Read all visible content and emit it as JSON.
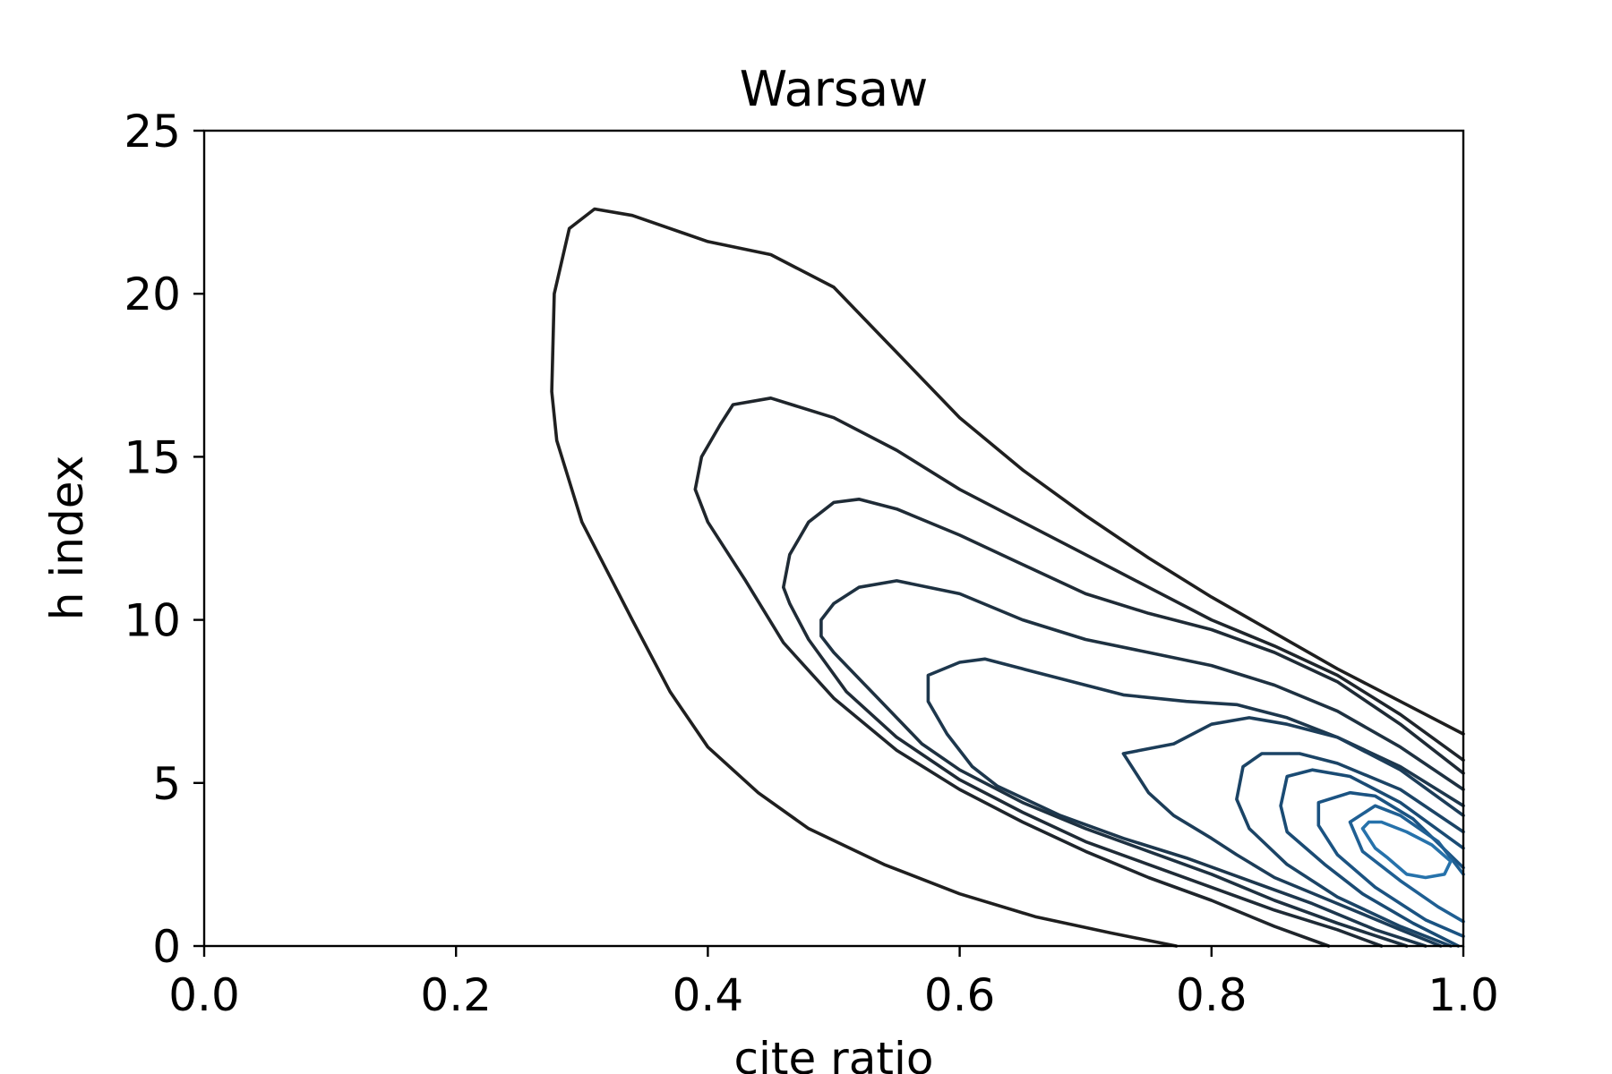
{
  "chart_data": {
    "type": "contour",
    "title": "Warsaw",
    "xlabel": "cite ratio",
    "ylabel": "h index",
    "xlim": [
      0.0,
      1.0
    ],
    "ylim": [
      0,
      25
    ],
    "xticks": [
      {
        "value": 0.0,
        "label": "0.0"
      },
      {
        "value": 0.2,
        "label": "0.2"
      },
      {
        "value": 0.4,
        "label": "0.4"
      },
      {
        "value": 0.6,
        "label": "0.6"
      },
      {
        "value": 0.8,
        "label": "0.8"
      },
      {
        "value": 1.0,
        "label": "1.0"
      }
    ],
    "yticks": [
      {
        "value": 0,
        "label": "0"
      },
      {
        "value": 5,
        "label": "5"
      },
      {
        "value": 10,
        "label": "10"
      },
      {
        "value": 15,
        "label": "15"
      },
      {
        "value": 20,
        "label": "20"
      },
      {
        "value": 25,
        "label": "25"
      }
    ],
    "grid": false,
    "legend": "none",
    "contours": [
      {
        "level": 1,
        "color": "#1f1f1f",
        "points": [
          [
            0.772,
            0.0
          ],
          [
            0.72,
            0.4
          ],
          [
            0.66,
            0.9
          ],
          [
            0.6,
            1.6
          ],
          [
            0.54,
            2.5
          ],
          [
            0.48,
            3.6
          ],
          [
            0.44,
            4.7
          ],
          [
            0.4,
            6.1
          ],
          [
            0.37,
            7.8
          ],
          [
            0.34,
            10.0
          ],
          [
            0.3,
            13.0
          ],
          [
            0.28,
            15.5
          ],
          [
            0.276,
            17.0
          ],
          [
            0.278,
            20.0
          ],
          [
            0.29,
            22.0
          ],
          [
            0.31,
            22.6
          ],
          [
            0.34,
            22.4
          ],
          [
            0.4,
            21.6
          ],
          [
            0.45,
            21.2
          ],
          [
            0.5,
            20.2
          ],
          [
            0.55,
            18.2
          ],
          [
            0.6,
            16.2
          ],
          [
            0.65,
            14.6
          ],
          [
            0.7,
            13.2
          ],
          [
            0.75,
            11.9
          ],
          [
            0.8,
            10.7
          ],
          [
            0.85,
            9.6
          ],
          [
            0.9,
            8.5
          ],
          [
            0.95,
            7.5
          ],
          [
            1.0,
            6.5
          ]
        ]
      },
      {
        "level": 2,
        "color": "#1f252b",
        "points": [
          [
            0.893,
            0.0
          ],
          [
            0.85,
            0.6
          ],
          [
            0.8,
            1.4
          ],
          [
            0.75,
            2.1
          ],
          [
            0.7,
            2.9
          ],
          [
            0.65,
            3.8
          ],
          [
            0.6,
            4.8
          ],
          [
            0.55,
            6.0
          ],
          [
            0.5,
            7.6
          ],
          [
            0.46,
            9.3
          ],
          [
            0.43,
            11.2
          ],
          [
            0.4,
            13.0
          ],
          [
            0.39,
            14.0
          ],
          [
            0.395,
            15.0
          ],
          [
            0.41,
            16.0
          ],
          [
            0.42,
            16.6
          ],
          [
            0.45,
            16.8
          ],
          [
            0.5,
            16.2
          ],
          [
            0.55,
            15.2
          ],
          [
            0.6,
            14.0
          ],
          [
            0.65,
            13.0
          ],
          [
            0.7,
            12.0
          ],
          [
            0.75,
            11.0
          ],
          [
            0.8,
            10.0
          ],
          [
            0.85,
            9.2
          ],
          [
            0.9,
            8.3
          ],
          [
            0.95,
            7.1
          ],
          [
            1.0,
            5.7
          ]
        ]
      },
      {
        "level": 3,
        "color": "#1f2b36",
        "points": [
          [
            0.935,
            0.0
          ],
          [
            0.9,
            0.5
          ],
          [
            0.85,
            1.1
          ],
          [
            0.8,
            1.8
          ],
          [
            0.75,
            2.5
          ],
          [
            0.7,
            3.2
          ],
          [
            0.65,
            4.1
          ],
          [
            0.6,
            5.1
          ],
          [
            0.55,
            6.4
          ],
          [
            0.51,
            7.8
          ],
          [
            0.48,
            9.4
          ],
          [
            0.465,
            10.5
          ],
          [
            0.46,
            11.0
          ],
          [
            0.465,
            12.0
          ],
          [
            0.48,
            13.0
          ],
          [
            0.5,
            13.6
          ],
          [
            0.52,
            13.7
          ],
          [
            0.55,
            13.4
          ],
          [
            0.6,
            12.6
          ],
          [
            0.65,
            11.7
          ],
          [
            0.7,
            10.8
          ],
          [
            0.75,
            10.2
          ],
          [
            0.8,
            9.7
          ],
          [
            0.85,
            9.0
          ],
          [
            0.9,
            8.1
          ],
          [
            0.95,
            6.8
          ],
          [
            1.0,
            5.3
          ]
        ]
      },
      {
        "level": 4,
        "color": "#1e3141",
        "points": [
          [
            0.955,
            0.0
          ],
          [
            0.9,
            0.7
          ],
          [
            0.85,
            1.4
          ],
          [
            0.8,
            2.2
          ],
          [
            0.75,
            2.9
          ],
          [
            0.7,
            3.6
          ],
          [
            0.65,
            4.4
          ],
          [
            0.6,
            5.4
          ],
          [
            0.57,
            6.2
          ],
          [
            0.53,
            7.8
          ],
          [
            0.5,
            9.0
          ],
          [
            0.49,
            9.5
          ],
          [
            0.49,
            10.0
          ],
          [
            0.5,
            10.5
          ],
          [
            0.52,
            11.0
          ],
          [
            0.55,
            11.2
          ],
          [
            0.6,
            10.8
          ],
          [
            0.65,
            10.0
          ],
          [
            0.7,
            9.4
          ],
          [
            0.75,
            9.0
          ],
          [
            0.8,
            8.6
          ],
          [
            0.85,
            8.0
          ],
          [
            0.9,
            7.2
          ],
          [
            0.95,
            6.1
          ],
          [
            1.0,
            4.8
          ]
        ]
      },
      {
        "level": 5,
        "color": "#1d374d",
        "points": [
          [
            0.97,
            0.0
          ],
          [
            0.93,
            0.5
          ],
          [
            0.88,
            1.3
          ],
          [
            0.83,
            2.0
          ],
          [
            0.78,
            2.7
          ],
          [
            0.73,
            3.3
          ],
          [
            0.68,
            4.0
          ],
          [
            0.63,
            4.9
          ],
          [
            0.61,
            5.5
          ],
          [
            0.59,
            6.5
          ],
          [
            0.575,
            7.5
          ],
          [
            0.575,
            8.3
          ],
          [
            0.6,
            8.7
          ],
          [
            0.62,
            8.8
          ],
          [
            0.65,
            8.5
          ],
          [
            0.7,
            8.0
          ],
          [
            0.73,
            7.7
          ],
          [
            0.78,
            7.5
          ],
          [
            0.82,
            7.4
          ],
          [
            0.86,
            7.0
          ],
          [
            0.9,
            6.4
          ],
          [
            0.95,
            5.5
          ],
          [
            1.0,
            4.3
          ]
        ]
      },
      {
        "level": 6,
        "color": "#1c3d59",
        "points": [
          [
            0.982,
            0.0
          ],
          [
            0.95,
            0.5
          ],
          [
            0.9,
            1.3
          ],
          [
            0.85,
            2.1
          ],
          [
            0.82,
            2.8
          ],
          [
            0.8,
            3.3
          ],
          [
            0.77,
            4.0
          ],
          [
            0.75,
            4.7
          ],
          [
            0.73,
            5.9
          ],
          [
            0.77,
            6.2
          ],
          [
            0.8,
            6.8
          ],
          [
            0.83,
            7.0
          ],
          [
            0.86,
            6.8
          ],
          [
            0.9,
            6.4
          ],
          [
            0.95,
            5.4
          ],
          [
            1.0,
            4.0
          ]
        ]
      },
      {
        "level": 7,
        "color": "#1b4466",
        "points": [
          [
            0.99,
            0.0
          ],
          [
            0.95,
            0.6
          ],
          [
            0.9,
            1.5
          ],
          [
            0.86,
            2.5
          ],
          [
            0.83,
            3.6
          ],
          [
            0.82,
            4.5
          ],
          [
            0.825,
            5.5
          ],
          [
            0.84,
            5.9
          ],
          [
            0.87,
            5.9
          ],
          [
            0.9,
            5.6
          ],
          [
            0.95,
            4.8
          ],
          [
            1.0,
            3.5
          ]
        ]
      },
      {
        "level": 8,
        "color": "#1a4b74",
        "points": [
          [
            0.996,
            0.0
          ],
          [
            0.96,
            0.7
          ],
          [
            0.92,
            1.6
          ],
          [
            0.89,
            2.5
          ],
          [
            0.86,
            3.5
          ],
          [
            0.855,
            4.3
          ],
          [
            0.86,
            5.2
          ],
          [
            0.88,
            5.4
          ],
          [
            0.91,
            5.2
          ],
          [
            0.95,
            4.4
          ],
          [
            1.0,
            3.0
          ]
        ]
      },
      {
        "level": 9,
        "color": "#1b5382",
        "points": [
          [
            1.0,
            0.3
          ],
          [
            0.97,
            0.8
          ],
          [
            0.93,
            1.8
          ],
          [
            0.9,
            2.8
          ],
          [
            0.885,
            3.7
          ],
          [
            0.885,
            4.4
          ],
          [
            0.91,
            4.7
          ],
          [
            0.93,
            4.6
          ],
          [
            0.96,
            3.9
          ],
          [
            1.0,
            2.4
          ]
        ]
      },
      {
        "level": 10,
        "color": "#1f5f93",
        "points": [
          [
            1.0,
            0.75
          ],
          [
            0.98,
            1.2
          ],
          [
            0.95,
            2.0
          ],
          [
            0.92,
            2.9
          ],
          [
            0.91,
            3.8
          ],
          [
            0.93,
            4.3
          ],
          [
            0.95,
            4.0
          ],
          [
            0.98,
            3.2
          ],
          [
            1.0,
            2.2
          ]
        ]
      },
      {
        "level": 11,
        "color": "#2672ab",
        "points": [
          [
            0.925,
            3.8
          ],
          [
            0.935,
            3.8
          ],
          [
            0.955,
            3.5
          ],
          [
            0.975,
            3.1
          ],
          [
            0.99,
            2.6
          ],
          [
            0.985,
            2.2
          ],
          [
            0.97,
            2.1
          ],
          [
            0.955,
            2.2
          ],
          [
            0.94,
            2.7
          ],
          [
            0.93,
            3.0
          ],
          [
            0.92,
            3.6
          ],
          [
            0.925,
            3.8
          ]
        ]
      }
    ]
  }
}
